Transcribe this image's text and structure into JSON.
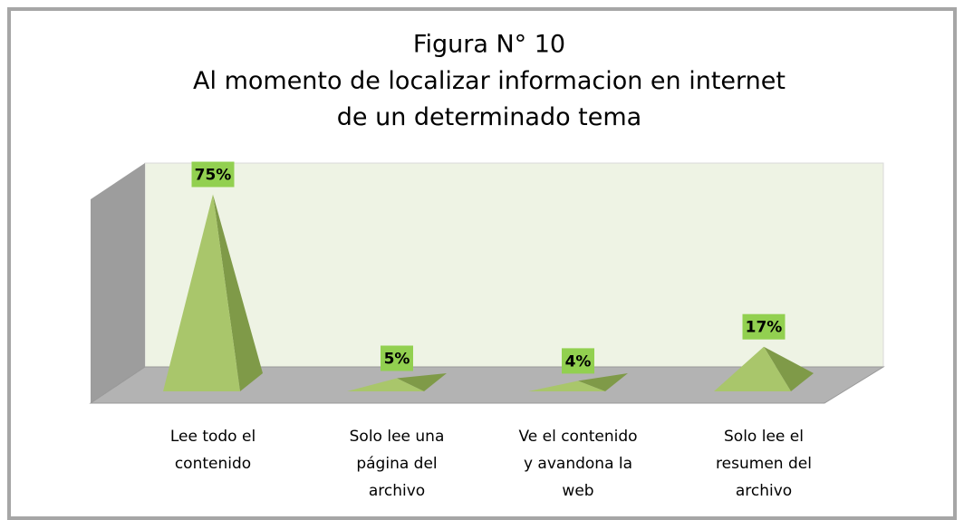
{
  "chart_data": {
    "type": "pyramid3d",
    "title": "Figura N° 10",
    "subtitle": "Al momento de localizar informacion en internet\nde un determinado tema",
    "categories": [
      "Lee todo el\ncontenido",
      "Solo lee una\npágina del\narchivo",
      "Ve el contenido\ny avandona la\nweb",
      "Solo lee el\nresumen del\narchivo"
    ],
    "values": [
      75,
      5,
      4,
      17
    ],
    "value_labels": [
      "75%",
      "5%",
      "4%",
      "17%"
    ],
    "color": "#a9c66b"
  }
}
